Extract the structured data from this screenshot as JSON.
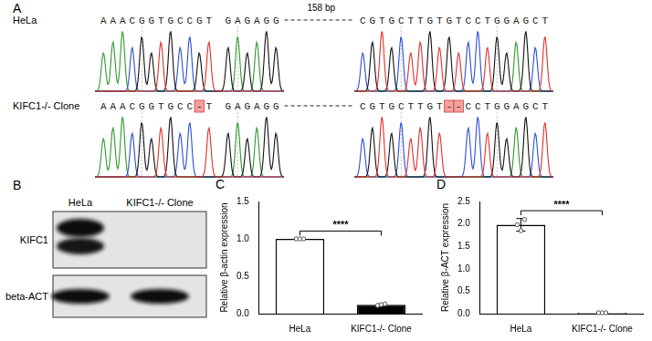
{
  "panel_a": {
    "label": "A",
    "gap_label": "158 bp",
    "rows": [
      {
        "name": "HeLa",
        "left": "AAACGGTGCCGT GAGAGG",
        "right": "CGTGCTTGTGTCCTGGAGCT"
      },
      {
        "name": "KIFC1-/- Clone",
        "left": "AAACGGTGCC-T GAGAGG",
        "right": "CGTGCTTGT--CCTGGAGCT"
      }
    ]
  },
  "panel_b": {
    "label": "B",
    "lanes": [
      "HeLa",
      "KIFC1-/- Clone"
    ],
    "rows": [
      {
        "name": "KIFC1",
        "detected": [
          true,
          false
        ]
      },
      {
        "name": "beta-ACT",
        "detected": [
          true,
          true
        ]
      }
    ]
  },
  "chart_data": [
    {
      "panel": "C",
      "type": "bar",
      "categories": [
        "HeLa",
        "KIFC1-/- Clone"
      ],
      "values": [
        1.0,
        0.12
      ],
      "errors": [
        0,
        0.01
      ],
      "points": [
        [
          1.0,
          1.0,
          1.0
        ],
        [
          0.11,
          0.12,
          0.13
        ]
      ],
      "colors": [
        "#ffffff",
        "#000000"
      ],
      "ylabel": "Relative β-actin expression",
      "ylim": [
        0,
        1.5
      ],
      "yticks": [
        {
          "value": 0,
          "label": "0.0"
        },
        {
          "value": 0.5,
          "label": "0.5"
        },
        {
          "value": 1,
          "label": "1.0"
        },
        {
          "value": 1.5,
          "label": "1.5"
        }
      ],
      "annotation": "****",
      "grid": false
    },
    {
      "panel": "D",
      "type": "bar",
      "categories": [
        "HeLa",
        "KIFC1-/- Clone"
      ],
      "values": [
        1.98,
        0.02
      ],
      "errors": [
        0.14,
        0.01
      ],
      "points": [
        [
          1.98,
          1.85,
          2.1
        ],
        [
          0.02,
          0.02,
          0.02
        ]
      ],
      "colors": [
        "#ffffff",
        "#ffffff"
      ],
      "ylabel": "Relative β-ACT expression",
      "ylim": [
        0,
        2.5
      ],
      "yticks": [
        {
          "value": 0,
          "label": "0.0"
        },
        {
          "value": 0.5,
          "label": "0.5"
        },
        {
          "value": 1,
          "label": "1.0"
        },
        {
          "value": 1.5,
          "label": "1.5"
        },
        {
          "value": 2,
          "label": "2.0"
        },
        {
          "value": 2.5,
          "label": "2.5"
        }
      ],
      "annotation": "****",
      "grid": false
    }
  ]
}
